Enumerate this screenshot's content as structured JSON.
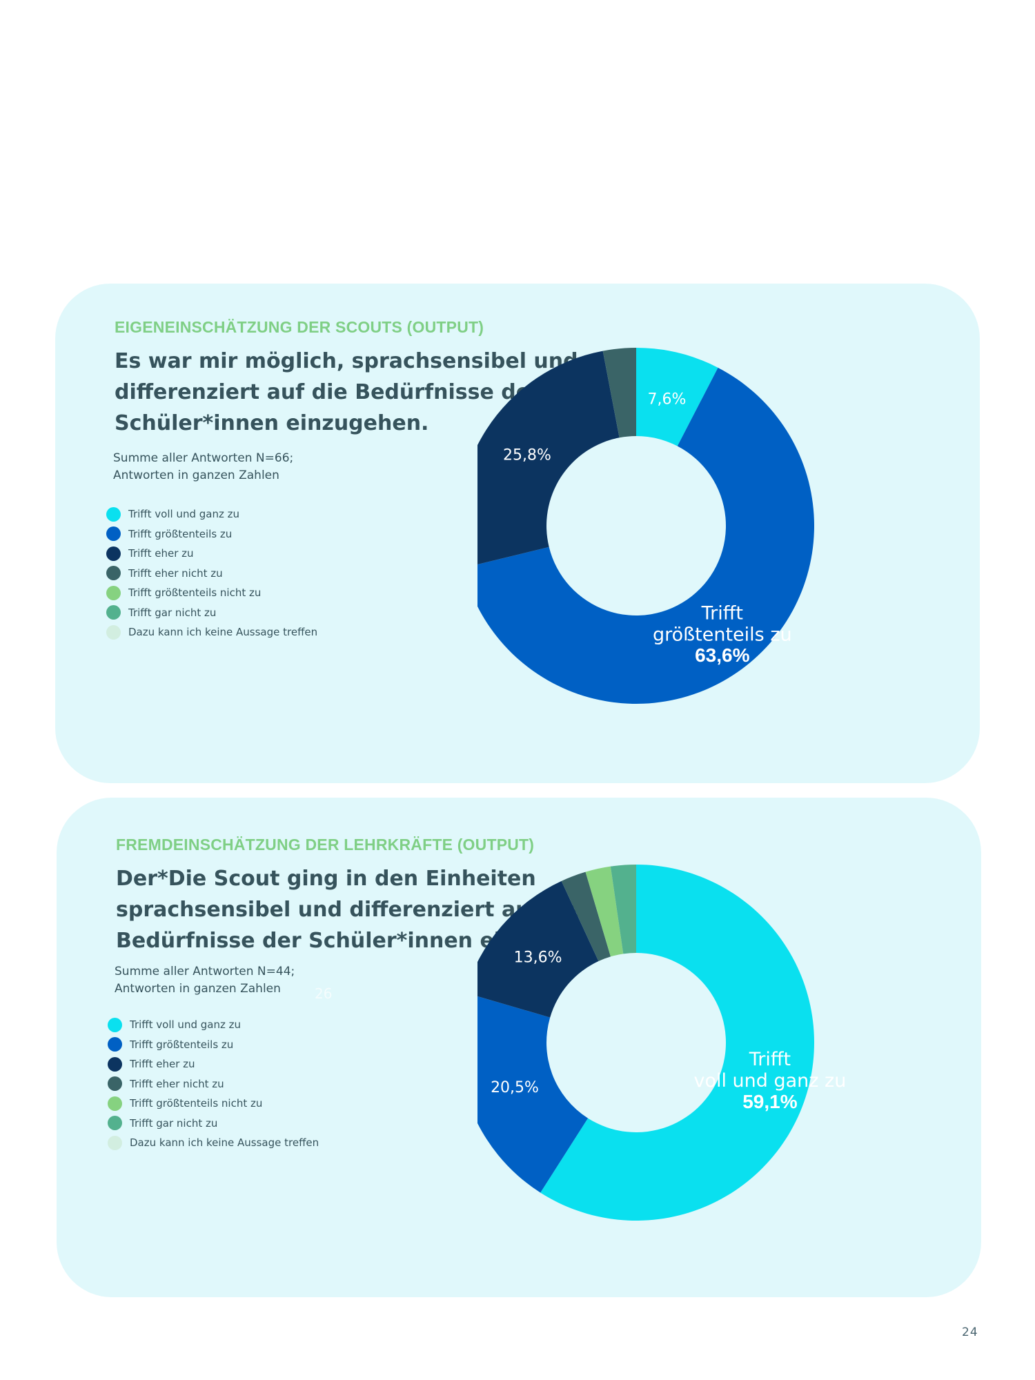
{
  "page_number": "24",
  "colors": {
    "card_bg": "#e0f8fb",
    "kicker": "#7fcf85",
    "text": "#36535c"
  },
  "legend_items": [
    {
      "label": "Trifft voll und ganz zu",
      "color": "#0ae0ef"
    },
    {
      "label": "Trifft größtenteils zu",
      "color": "#0060c4"
    },
    {
      "label": "Trifft eher zu",
      "color": "#0c3460"
    },
    {
      "label": "Trifft eher nicht zu",
      "color": "#3a6467"
    },
    {
      "label": "Trifft größtenteils  nicht zu",
      "color": "#86d280"
    },
    {
      "label": "Trifft gar nicht zu",
      "color": "#53b18e"
    },
    {
      "label": "Dazu kann ich keine Aussage treffen",
      "color": "#d2eee0"
    }
  ],
  "panels": [
    {
      "kicker": "EIGENEINSCHÄTZUNG DER SCOUTS (OUTPUT)",
      "question": "Es war mir möglich, sprachsensibel und differenziert auf die Bedürfnisse der Schüler*innen einzugehen.",
      "note": "Summe aller Antworten N=66;\nAntworten in ganzen Zahlen",
      "stray": []
    },
    {
      "kicker": "FREMDEINSCHÄTZUNG DER LEHRKRÄFTE (OUTPUT)",
      "question": "Der*Die Scout ging in den Einheiten sprachsensibel und differenziert auf die Bedürfnisse der Schüler*innen ein.",
      "note": "Summe aller Antworten N=44;\nAntworten in ganzen Zahlen",
      "stray": [
        "26"
      ]
    }
  ],
  "chart_data": [
    {
      "type": "pie",
      "donut": true,
      "n": 66,
      "categories": [
        "Trifft voll und ganz zu",
        "Trifft größtenteils zu",
        "Trifft eher zu",
        "Trifft eher nicht zu",
        "Trifft größtenteils  nicht zu",
        "Trifft gar nicht zu",
        "Dazu kann ich keine Aussage treffen"
      ],
      "values": [
        7.6,
        63.6,
        25.8,
        3.0,
        0,
        0,
        0
      ],
      "colors": [
        "#0ae0ef",
        "#0060c4",
        "#0c3460",
        "#3a6467",
        "#86d280",
        "#53b18e",
        "#d2eee0"
      ],
      "data_labels": [
        {
          "slice": 0,
          "lines": [
            "7,6%"
          ],
          "bold_last": false
        },
        {
          "slice": 1,
          "lines": [
            "Trifft",
            "größtenteils zu",
            "63,6%"
          ],
          "bold_last": true
        },
        {
          "slice": 2,
          "lines": [
            "25,8%"
          ],
          "bold_last": false
        }
      ]
    },
    {
      "type": "pie",
      "donut": true,
      "n": 44,
      "categories": [
        "Trifft voll und ganz zu",
        "Trifft größtenteils zu",
        "Trifft eher zu",
        "Trifft eher nicht zu",
        "Trifft größtenteils  nicht zu",
        "Trifft gar nicht zu",
        "Dazu kann ich keine Aussage treffen"
      ],
      "values": [
        59.1,
        20.5,
        13.6,
        2.3,
        2.3,
        2.3,
        0
      ],
      "colors": [
        "#0ae0ef",
        "#0060c4",
        "#0c3460",
        "#3a6467",
        "#86d280",
        "#53b18e",
        "#d2eee0"
      ],
      "data_labels": [
        {
          "slice": 0,
          "lines": [
            "Trifft",
            "voll und ganz zu",
            "59,1%"
          ],
          "bold_last": true
        },
        {
          "slice": 1,
          "lines": [
            "20,5%"
          ],
          "bold_last": false
        },
        {
          "slice": 2,
          "lines": [
            "13,6%"
          ],
          "bold_last": false
        }
      ]
    }
  ]
}
